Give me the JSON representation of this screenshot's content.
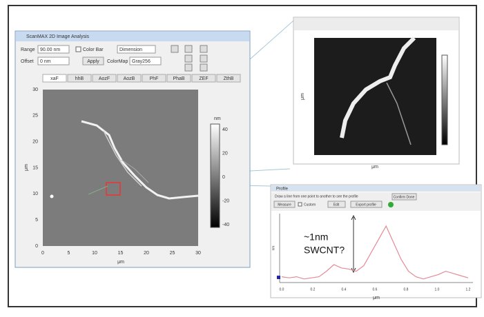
{
  "main_window": {
    "title": "ScanMAX 2D Image Analysis",
    "range_label": "Range",
    "range_value": "90.00 nm",
    "color_bar": "Color Bar",
    "offset_label": "Offset",
    "offset_value": "0 nm",
    "apply": "Apply",
    "colormap_label": "ColorMap",
    "colormap_value": "Gray256",
    "dimension": "Dimension",
    "tabs": [
      "xaF",
      "hhB",
      "AozF",
      "AozB",
      "PhF",
      "PhaB",
      "ZEF",
      "ZthB"
    ],
    "y_ticks": [
      "30",
      "25",
      "20",
      "15",
      "10",
      "5",
      "0"
    ],
    "x_ticks": [
      "0",
      "5",
      "10",
      "15",
      "20",
      "25",
      "30"
    ],
    "x_label": "μm",
    "y_label": "μm",
    "colorbar_unit": "nm",
    "colorbar_ticks": [
      "40",
      "20",
      "0",
      "-20",
      "-40"
    ]
  },
  "zoom_window": {
    "x_label": "μm",
    "y_label": "μm"
  },
  "profile_window": {
    "title": "Profile",
    "instruction": "Draw a line from one point to another to see the profile",
    "button_1": "Measure",
    "checkbox": "Custom",
    "button_2": "Edit",
    "button_3": "Export profile",
    "button_4": "Confirm Done",
    "x_label": "μm",
    "y_label": "nm",
    "x_ticks": [
      "0.0",
      "0.2",
      "0.4",
      "0.6",
      "0.8",
      "1.0",
      "1.2"
    ],
    "xlim": [
      0,
      1.25
    ],
    "ylim": [
      0,
      6
    ],
    "x": [
      0,
      0.05,
      0.1,
      0.15,
      0.2,
      0.25,
      0.3,
      0.35,
      0.4,
      0.45,
      0.5,
      0.55,
      0.6,
      0.65,
      0.7,
      0.75,
      0.8,
      0.85,
      0.9,
      0.95,
      1.0,
      1.05,
      1.1,
      1.15,
      1.2,
      1.25
    ],
    "values": [
      0.4,
      0.3,
      0.4,
      0.2,
      0.3,
      0.4,
      0.9,
      1.5,
      1.2,
      1.1,
      0.9,
      1.4,
      2.6,
      3.8,
      5.0,
      3.5,
      2.0,
      0.9,
      0.4,
      0.2,
      0.4,
      0.6,
      0.9,
      0.7,
      0.5,
      0.3
    ],
    "annotation_line1": "~1nm",
    "annotation_line2": "SWCNT?"
  }
}
